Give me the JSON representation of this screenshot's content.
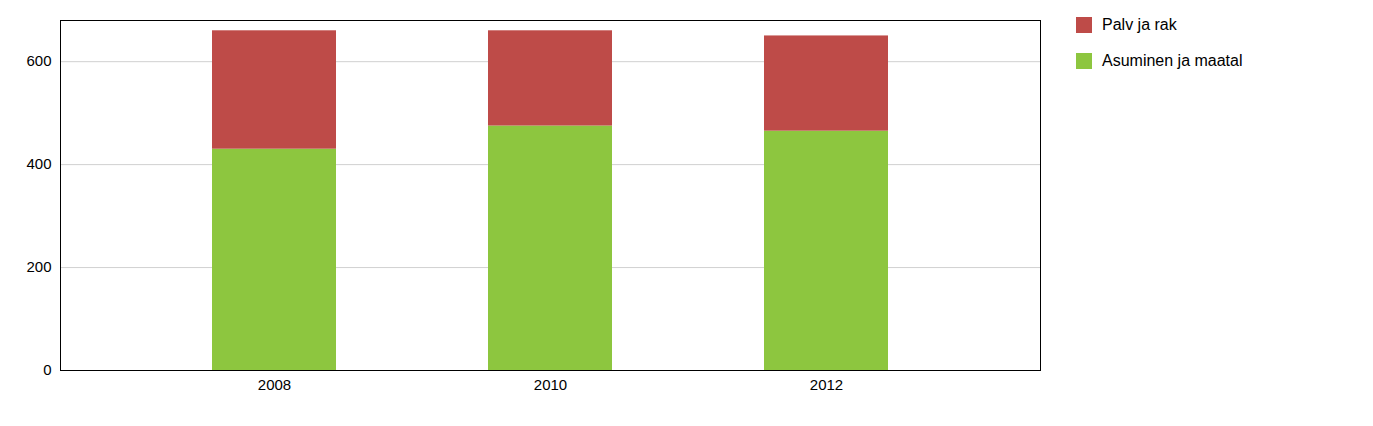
{
  "chart_data": {
    "type": "bar",
    "stacked": true,
    "categories": [
      "2008",
      "2010",
      "2012"
    ],
    "series": [
      {
        "name": "Asuminen ja maatal",
        "color": "#8dc63f",
        "values": [
          430,
          475,
          465
        ]
      },
      {
        "name": "Palv ja rak",
        "color": "#be4b48",
        "values": [
          230,
          185,
          185
        ]
      }
    ],
    "ylim": [
      0,
      680
    ],
    "yticks": [
      0,
      200,
      400,
      600
    ],
    "grid": true,
    "legend": "right"
  }
}
